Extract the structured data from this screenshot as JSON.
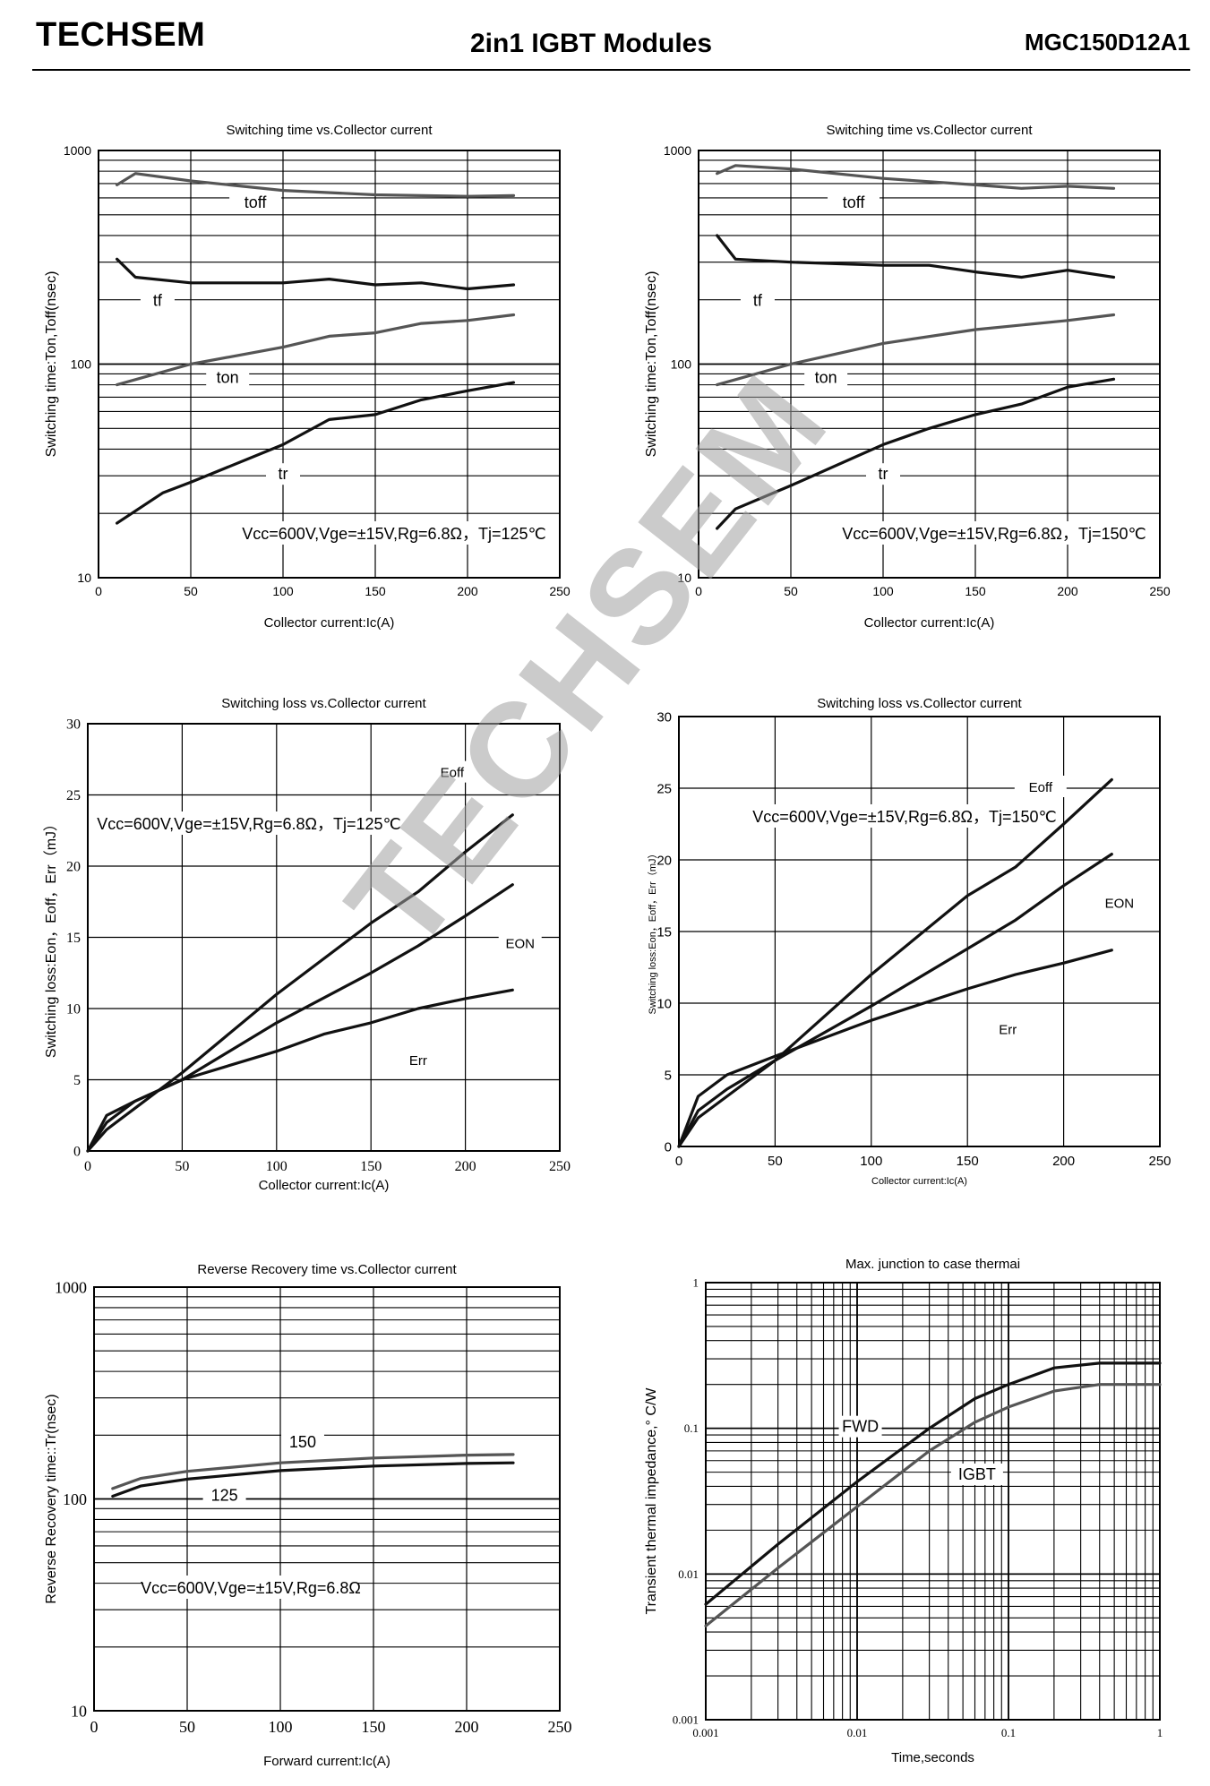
{
  "header": {
    "brand": "TECHSEM",
    "title": "2in1  IGBT  Modules",
    "model": "MGC150D12A1"
  },
  "watermark": "TECHSEM",
  "colors": {
    "dark": "#111111",
    "gray": "#555555"
  },
  "chart_data": [
    {
      "id": "c1",
      "type": "line",
      "title": "Switching time vs.Collector current",
      "xlabel": "Collector current:Ic(A)",
      "ylabel": "Switching time:Ton,Toff(nsec)",
      "xlim": [
        0,
        250
      ],
      "ylim": [
        10,
        1000
      ],
      "yscale": "log",
      "xticks": [
        "0",
        "50",
        "100",
        "150",
        "200",
        "250"
      ],
      "yticks": [
        "10",
        "100",
        "1000"
      ],
      "annotation": "Vcc=600V,Vge=±15V,Rg=6.8Ω，Tj=125℃",
      "series": [
        {
          "name": "toff",
          "color": "gray",
          "x": [
            10,
            20,
            50,
            100,
            150,
            200,
            225
          ],
          "y": [
            690,
            780,
            720,
            650,
            620,
            610,
            615
          ]
        },
        {
          "name": "tf",
          "color": "dark",
          "x": [
            10,
            20,
            50,
            100,
            125,
            150,
            175,
            200,
            225
          ],
          "y": [
            310,
            255,
            240,
            240,
            250,
            235,
            240,
            225,
            235
          ]
        },
        {
          "name": "ton",
          "color": "gray",
          "x": [
            10,
            50,
            100,
            125,
            150,
            175,
            200,
            225
          ],
          "y": [
            80,
            100,
            120,
            135,
            140,
            155,
            160,
            170
          ]
        },
        {
          "name": "tr",
          "color": "dark",
          "x": [
            10,
            35,
            50,
            100,
            125,
            150,
            175,
            200,
            225
          ],
          "y": [
            18,
            25,
            28,
            42,
            55,
            58,
            68,
            75,
            82
          ]
        }
      ],
      "labels": [
        {
          "text": "toff",
          "x": 85,
          "y": 560
        },
        {
          "text": "tf",
          "x": 32,
          "y": 195
        },
        {
          "text": "ton",
          "x": 70,
          "y": 85
        },
        {
          "text": "tr",
          "x": 100,
          "y": 30
        }
      ]
    },
    {
      "id": "c2",
      "type": "line",
      "title": "Switching time vs.Collector current",
      "xlabel": "Collector current:Ic(A)",
      "ylabel": "Switching time:Ton,Toff(nsec)",
      "xlim": [
        0,
        250
      ],
      "ylim": [
        10,
        1000
      ],
      "yscale": "log",
      "xticks": [
        "0",
        "50",
        "100",
        "150",
        "200",
        "250"
      ],
      "yticks": [
        "10",
        "100",
        "1000"
      ],
      "annotation": "Vcc=600V,Vge=±15V,Rg=6.8Ω，Tj=150℃",
      "series": [
        {
          "name": "toff",
          "color": "gray",
          "x": [
            10,
            20,
            50,
            100,
            150,
            175,
            200,
            225
          ],
          "y": [
            780,
            850,
            820,
            740,
            690,
            665,
            680,
            665
          ]
        },
        {
          "name": "tf",
          "color": "dark",
          "x": [
            10,
            20,
            50,
            100,
            125,
            150,
            175,
            200,
            225
          ],
          "y": [
            400,
            310,
            300,
            290,
            290,
            270,
            255,
            275,
            255
          ]
        },
        {
          "name": "ton",
          "color": "gray",
          "x": [
            10,
            50,
            100,
            150,
            200,
            225
          ],
          "y": [
            80,
            100,
            125,
            145,
            160,
            170
          ]
        },
        {
          "name": "tr",
          "color": "dark",
          "x": [
            10,
            20,
            50,
            100,
            125,
            150,
            175,
            200,
            225
          ],
          "y": [
            17,
            21,
            27,
            42,
            50,
            58,
            65,
            78,
            85
          ]
        }
      ],
      "labels": [
        {
          "text": "toff",
          "x": 84,
          "y": 560
        },
        {
          "text": "tf",
          "x": 32,
          "y": 195
        },
        {
          "text": "ton",
          "x": 69,
          "y": 85
        },
        {
          "text": "tr",
          "x": 100,
          "y": 30
        }
      ]
    },
    {
      "id": "c3",
      "type": "line",
      "title": "Switching loss vs.Collector current",
      "xlabel": "Collector current:Ic(A)",
      "ylabel": "Switching loss:Eon，Eoff，Err（mJ）",
      "xlim": [
        0,
        250
      ],
      "ylim": [
        0,
        30
      ],
      "yscale": "linear",
      "xticks": [
        "0",
        "50",
        "100",
        "150",
        "200",
        "250"
      ],
      "yticks": [
        "0",
        "5",
        "10",
        "15",
        "20",
        "25",
        "30"
      ],
      "annotation": "Vcc=600V,Vge=±15V,Rg=6.8Ω，Tj=125℃",
      "series": [
        {
          "name": "Eoff",
          "color": "dark",
          "x": [
            0,
            10,
            25,
            50,
            100,
            150,
            175,
            200,
            225
          ],
          "y": [
            0,
            1.5,
            3,
            5.5,
            11,
            16,
            18.2,
            21,
            23.6
          ]
        },
        {
          "name": "EON",
          "color": "dark",
          "x": [
            0,
            10,
            25,
            50,
            100,
            150,
            175,
            200,
            225
          ],
          "y": [
            0,
            2,
            3.5,
            5,
            9,
            12.5,
            14.4,
            16.5,
            18.7
          ]
        },
        {
          "name": "Err",
          "color": "dark",
          "x": [
            0,
            10,
            25,
            50,
            100,
            125,
            150,
            175,
            200,
            225
          ],
          "y": [
            0,
            2.5,
            3.5,
            5,
            7,
            8.2,
            9,
            10,
            10.7,
            11.3
          ]
        }
      ],
      "labels": [
        {
          "text": "Eoff",
          "x": 193,
          "y": 26.5
        },
        {
          "text": "EON",
          "x": 229,
          "y": 14.5
        },
        {
          "text": "Err",
          "x": 175,
          "y": 6.3
        }
      ]
    },
    {
      "id": "c4",
      "type": "line",
      "title": "Switching loss vs.Collector current",
      "xlabel": "Collector current:Ic(A)",
      "ylabel": "Switching loss:Eon，Eoff，Err（mJ）",
      "xlim": [
        0,
        250
      ],
      "ylim": [
        0,
        30
      ],
      "yscale": "linear",
      "xticks": [
        "0",
        "50",
        "100",
        "150",
        "200",
        "250"
      ],
      "yticks": [
        "0",
        "5",
        "10",
        "15",
        "20",
        "25",
        "30"
      ],
      "annotation": "Vcc=600V,Vge=±15V,Rg=6.8Ω，Tj=150℃",
      "series": [
        {
          "name": "Eoff",
          "color": "dark",
          "x": [
            0,
            10,
            25,
            50,
            100,
            150,
            175,
            200,
            225
          ],
          "y": [
            0,
            2,
            3.5,
            6,
            12,
            17.5,
            19.5,
            22.5,
            25.6
          ]
        },
        {
          "name": "EON",
          "color": "dark",
          "x": [
            0,
            10,
            25,
            50,
            100,
            150,
            175,
            200,
            225
          ],
          "y": [
            0,
            2.5,
            4,
            6,
            9.8,
            13.8,
            15.8,
            18.2,
            20.4
          ]
        },
        {
          "name": "Err",
          "color": "dark",
          "x": [
            0,
            10,
            25,
            50,
            100,
            150,
            175,
            200,
            225
          ],
          "y": [
            0,
            3.5,
            5,
            6.3,
            8.8,
            11,
            12,
            12.8,
            13.7
          ]
        }
      ],
      "labels": [
        {
          "text": "Eoff",
          "x": 188,
          "y": 25
        },
        {
          "text": "EON",
          "x": 229,
          "y": 16.9
        },
        {
          "text": "Err",
          "x": 171,
          "y": 8.1
        }
      ]
    },
    {
      "id": "c5",
      "type": "line",
      "title": "Reverse Recovery time vs.Collector current",
      "xlabel": "Forward current:Ic(A)",
      "ylabel": "Reverse Recovery time::Tr(nsec)",
      "xlim": [
        0,
        250
      ],
      "ylim": [
        10,
        1000
      ],
      "yscale": "log",
      "xticks": [
        "0",
        "50",
        "100",
        "150",
        "200",
        "250"
      ],
      "yticks": [
        "10",
        "100",
        "1000"
      ],
      "annotation": "Vcc=600V,Vge=±15V,Rg=6.8Ω",
      "series": [
        {
          "name": "150",
          "color": "gray",
          "x": [
            10,
            25,
            50,
            100,
            150,
            200,
            225
          ],
          "y": [
            112,
            125,
            135,
            148,
            156,
            161,
            162
          ]
        },
        {
          "name": "125",
          "color": "dark",
          "x": [
            10,
            25,
            50,
            100,
            150,
            200,
            225
          ],
          "y": [
            103,
            115,
            124,
            136,
            143,
            147,
            148
          ]
        }
      ],
      "labels": [
        {
          "text": "150",
          "x": 112,
          "y": 182
        },
        {
          "text": "125",
          "x": 70,
          "y": 102
        }
      ]
    },
    {
      "id": "c6",
      "type": "line",
      "title": "Max. junction to case thermai",
      "xlabel": "Time,seconds",
      "ylabel": "Transient thermal impedance,° C/W",
      "xlim": [
        0.001,
        1
      ],
      "ylim": [
        0.001,
        1
      ],
      "xscale": "log",
      "yscale": "log",
      "xticks": [
        "0.001",
        "0.01",
        "0.1",
        "1"
      ],
      "yticks": [
        "0.001",
        "0.01",
        "0.1",
        "1"
      ],
      "series": [
        {
          "name": "FWD",
          "color": "dark",
          "x": [
            0.001,
            0.003,
            0.01,
            0.03,
            0.06,
            0.1,
            0.2,
            0.4,
            1
          ],
          "y": [
            0.0062,
            0.016,
            0.043,
            0.1,
            0.16,
            0.2,
            0.26,
            0.28,
            0.28
          ]
        },
        {
          "name": "IGBT",
          "color": "gray",
          "x": [
            0.001,
            0.003,
            0.01,
            0.03,
            0.06,
            0.1,
            0.2,
            0.4,
            1
          ],
          "y": [
            0.0044,
            0.011,
            0.029,
            0.07,
            0.11,
            0.14,
            0.18,
            0.2,
            0.2
          ]
        }
      ],
      "labels": [
        {
          "text": "FWD",
          "x": 0.0105,
          "y": 0.1
        },
        {
          "text": "IGBT",
          "x": 0.062,
          "y": 0.047
        }
      ]
    }
  ]
}
